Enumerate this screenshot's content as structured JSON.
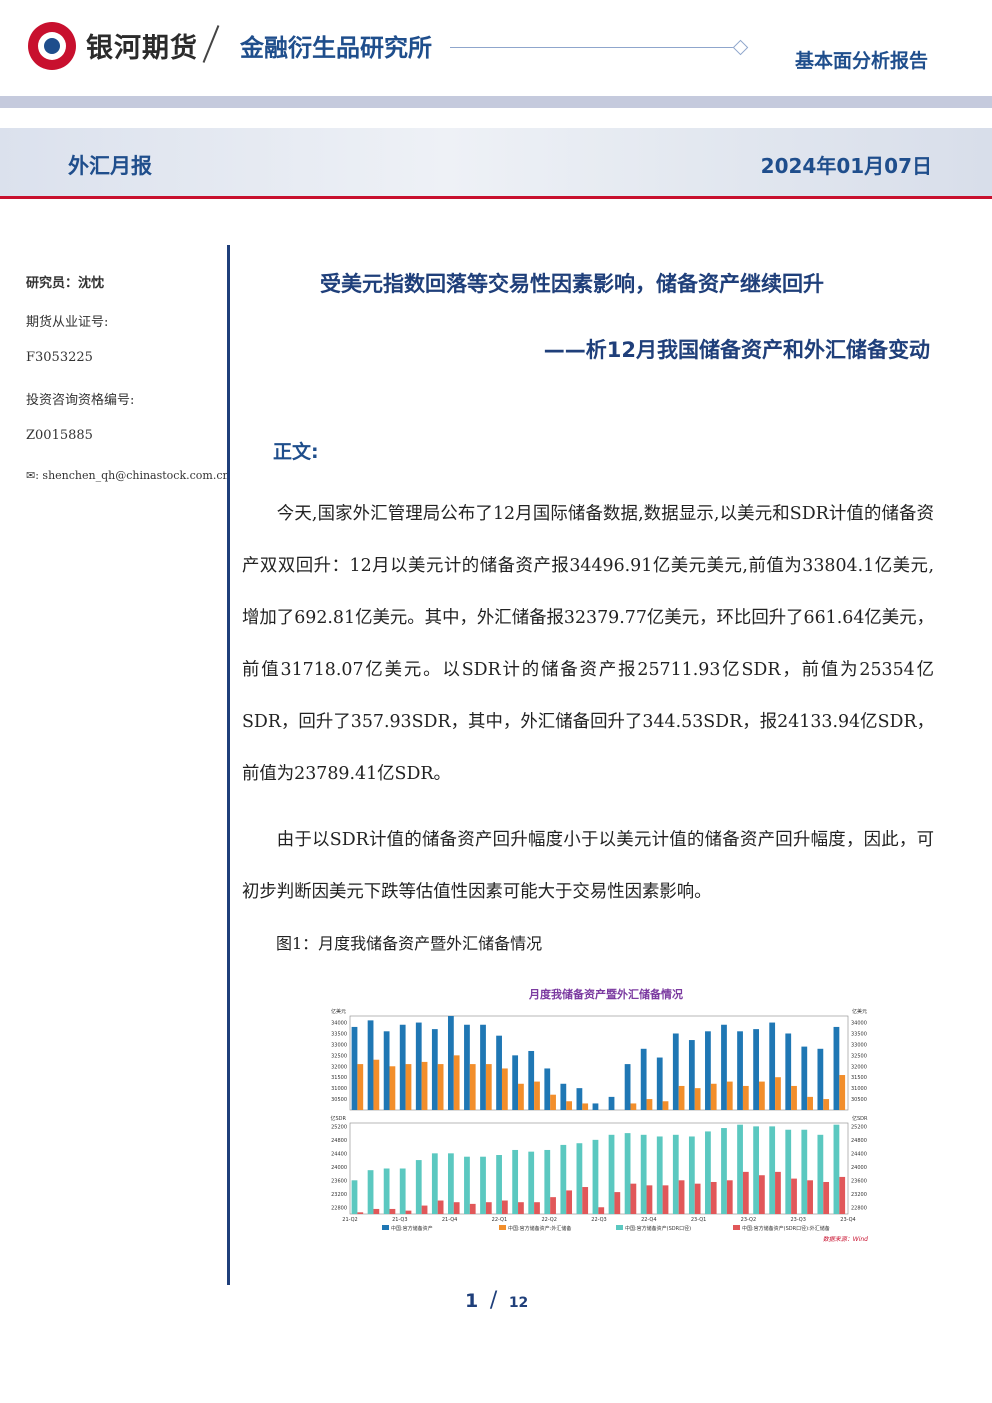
{
  "header": {
    "brand": "银河期货",
    "institute": "金融衍生品研究所",
    "report_type": "基本面分析报告",
    "category": "外汇月报",
    "date": "2024年01月07日"
  },
  "sidebar": {
    "researcher": "研究员：沈忱",
    "futures_cert_label": "期货从业证号:",
    "futures_cert": "F3053225",
    "consult_cert_label": "投资咨询资格编号:",
    "consult_cert": "Z0015885",
    "email": "shenchen_qh@chinastock.com.cn"
  },
  "title": {
    "main": "受美元指数回落等交易性因素影响，储备资产继续回升",
    "sub": "——析12月我国储备资产和外汇储备变动"
  },
  "section_label": "正文:",
  "paragraphs": [
    "今天,国家外汇管理局公布了12月国际储备数据,数据显示,以美元和SDR计值的储备资产双双回升：12月以美元计的储备资产报34496.91亿美元美元,前值为33804.1亿美元,增加了692.81亿美元。其中，外汇储备报32379.77亿美元，环比回升了661.64亿美元，前值31718.07亿美元。以SDR计的储备资产报25711.93亿SDR，前值为25354亿SDR，回升了357.93SDR，其中，外汇储备回升了344.53SDR，报24133.94亿SDR，前值为23789.41亿SDR。",
    "由于以SDR计值的储备资产回升幅度小于以美元计值的储备资产回升幅度，因此，可初步判断因美元下跌等估值性因素可能大于交易性因素影响。"
  ],
  "figure_caption": "图1：月度我储备资产暨外汇储备情况",
  "chart_data": {
    "type": "bar",
    "title": "月度我储备资产暨外汇储备情况",
    "source": "数据来源：Wind",
    "x_tick_labels": [
      "21-Q2",
      "21-Q3",
      "21-Q4",
      "22-Q1",
      "22-Q2",
      "22-Q3",
      "22-Q4",
      "23-Q1",
      "23-Q2",
      "23-Q3",
      "23-Q4"
    ],
    "top_panel": {
      "unit": "亿美元",
      "ylim": [
        30000,
        34300
      ],
      "y_ticks": [
        30500,
        31000,
        31500,
        32000,
        32500,
        33000,
        33500,
        34000
      ],
      "series": [
        {
          "name": "中国:官方储备资产",
          "color": "#1f77b4",
          "values": [
            33800,
            34100,
            33600,
            33900,
            34000,
            33700,
            34300,
            33900,
            33900,
            33400,
            32500,
            32700,
            31900,
            31200,
            31000,
            30300,
            30600,
            32100,
            32800,
            32400,
            33500,
            33200,
            33600,
            33900,
            33600,
            33700,
            34000,
            33500,
            32900,
            32800,
            33800
          ]
        },
        {
          "name": "中国:官方储备资产:外汇储备",
          "color": "#f28e2b",
          "values": [
            32100,
            32300,
            32000,
            32100,
            32200,
            32100,
            32500,
            32100,
            32100,
            31900,
            31200,
            31300,
            30700,
            30400,
            30300,
            29700,
            29800,
            30300,
            30500,
            30400,
            31100,
            31000,
            31200,
            31300,
            31100,
            31300,
            31500,
            31100,
            30600,
            30500,
            31600
          ]
        }
      ]
    },
    "bottom_panel": {
      "unit": "亿SDR",
      "ylim": [
        22600,
        25300
      ],
      "y_ticks": [
        22800,
        23200,
        23600,
        24000,
        24400,
        24800,
        25200
      ],
      "series": [
        {
          "name": "中国:官方储备资产(SDR口径)",
          "color": "#5bc8c0",
          "values": [
            23600,
            23900,
            23950,
            23950,
            24200,
            24400,
            24400,
            24300,
            24300,
            24350,
            24500,
            24450,
            24500,
            24650,
            24700,
            24800,
            24950,
            25000,
            24950,
            24900,
            24950,
            24900,
            25050,
            25150,
            25250,
            25200,
            25200,
            25100,
            25100,
            24950,
            25250
          ]
        },
        {
          "name": "中国:官方储备资产(SDR口径):外汇储备",
          "color": "#e15759",
          "values": [
            22650,
            22750,
            22750,
            22700,
            22850,
            23000,
            22950,
            22900,
            22950,
            23000,
            22950,
            22950,
            23100,
            23300,
            23400,
            22800,
            23250,
            23500,
            23450,
            23450,
            23600,
            23500,
            23550,
            23600,
            23850,
            23750,
            23850,
            23650,
            23600,
            23550,
            23700
          ]
        }
      ]
    }
  },
  "footer": {
    "page": "1",
    "sep": "/",
    "total": "12"
  }
}
